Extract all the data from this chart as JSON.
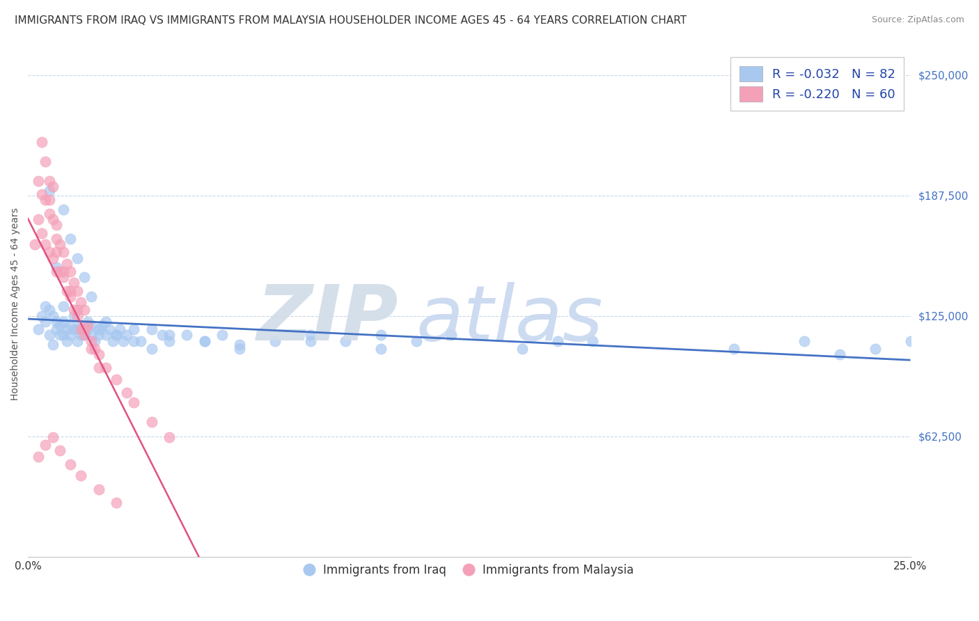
{
  "title": "IMMIGRANTS FROM IRAQ VS IMMIGRANTS FROM MALAYSIA HOUSEHOLDER INCOME AGES 45 - 64 YEARS CORRELATION CHART",
  "source": "Source: ZipAtlas.com",
  "xlabel_start": "0.0%",
  "xlabel_end": "25.0%",
  "ylabel_label": "Householder Income Ages 45 - 64 years",
  "ytick_labels": [
    "$62,500",
    "$125,000",
    "$187,500",
    "$250,000"
  ],
  "ytick_values": [
    62500,
    125000,
    187500,
    250000
  ],
  "xmin": 0.0,
  "xmax": 0.25,
  "ymin": 0,
  "ymax": 262500,
  "iraq_color": "#a8c8f0",
  "malaysia_color": "#f4a0b8",
  "iraq_trend_color": "#4472c4",
  "malaysia_trend_color": "#e05080",
  "background_color": "#ffffff",
  "grid_color": "#c8d8e8",
  "title_fontsize": 11,
  "iraq_scatter_x": [
    0.003,
    0.004,
    0.005,
    0.005,
    0.006,
    0.006,
    0.007,
    0.007,
    0.008,
    0.008,
    0.009,
    0.009,
    0.01,
    0.01,
    0.01,
    0.011,
    0.011,
    0.012,
    0.012,
    0.013,
    0.013,
    0.014,
    0.014,
    0.015,
    0.015,
    0.016,
    0.016,
    0.017,
    0.017,
    0.018,
    0.018,
    0.019,
    0.02,
    0.02,
    0.021,
    0.022,
    0.023,
    0.024,
    0.025,
    0.026,
    0.027,
    0.028,
    0.03,
    0.032,
    0.035,
    0.038,
    0.04,
    0.045,
    0.05,
    0.055,
    0.06,
    0.07,
    0.08,
    0.09,
    0.1,
    0.11,
    0.12,
    0.14,
    0.16,
    0.006,
    0.008,
    0.01,
    0.012,
    0.014,
    0.016,
    0.018,
    0.02,
    0.022,
    0.025,
    0.03,
    0.035,
    0.04,
    0.05,
    0.06,
    0.08,
    0.1,
    0.15,
    0.2,
    0.22,
    0.23,
    0.24,
    0.25
  ],
  "iraq_scatter_y": [
    118000,
    125000,
    122000,
    130000,
    115000,
    128000,
    110000,
    125000,
    118000,
    122000,
    115000,
    120000,
    130000,
    115000,
    122000,
    118000,
    112000,
    115000,
    120000,
    118000,
    125000,
    112000,
    118000,
    115000,
    120000,
    118000,
    115000,
    122000,
    118000,
    115000,
    120000,
    112000,
    115000,
    118000,
    120000,
    115000,
    118000,
    112000,
    115000,
    118000,
    112000,
    115000,
    118000,
    112000,
    118000,
    115000,
    112000,
    115000,
    112000,
    115000,
    110000,
    112000,
    115000,
    112000,
    115000,
    112000,
    115000,
    108000,
    112000,
    190000,
    150000,
    180000,
    165000,
    155000,
    145000,
    135000,
    118000,
    122000,
    115000,
    112000,
    108000,
    115000,
    112000,
    108000,
    112000,
    108000,
    112000,
    108000,
    112000,
    105000,
    108000,
    112000
  ],
  "malaysia_scatter_x": [
    0.002,
    0.003,
    0.003,
    0.004,
    0.004,
    0.005,
    0.005,
    0.005,
    0.006,
    0.006,
    0.006,
    0.007,
    0.007,
    0.007,
    0.008,
    0.008,
    0.008,
    0.009,
    0.009,
    0.01,
    0.01,
    0.011,
    0.011,
    0.012,
    0.012,
    0.013,
    0.013,
    0.014,
    0.014,
    0.015,
    0.015,
    0.016,
    0.016,
    0.017,
    0.018,
    0.019,
    0.02,
    0.022,
    0.025,
    0.028,
    0.03,
    0.035,
    0.04,
    0.004,
    0.006,
    0.008,
    0.01,
    0.012,
    0.014,
    0.016,
    0.018,
    0.02,
    0.003,
    0.005,
    0.007,
    0.009,
    0.012,
    0.015,
    0.02,
    0.025
  ],
  "malaysia_scatter_y": [
    162000,
    195000,
    175000,
    188000,
    168000,
    205000,
    185000,
    162000,
    195000,
    178000,
    158000,
    175000,
    192000,
    155000,
    172000,
    158000,
    148000,
    162000,
    148000,
    158000,
    145000,
    152000,
    138000,
    148000,
    135000,
    142000,
    128000,
    138000,
    125000,
    132000,
    118000,
    128000,
    115000,
    120000,
    112000,
    108000,
    105000,
    98000,
    92000,
    85000,
    80000,
    70000,
    62000,
    215000,
    185000,
    165000,
    148000,
    138000,
    128000,
    118000,
    108000,
    98000,
    52000,
    58000,
    62000,
    55000,
    48000,
    42000,
    35000,
    28000
  ]
}
